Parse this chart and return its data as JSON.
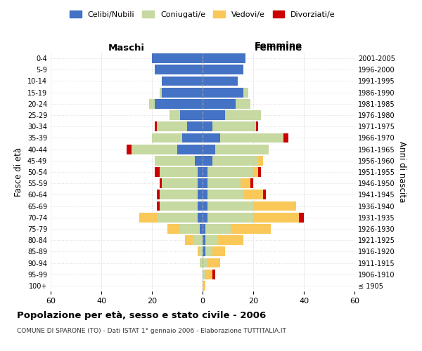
{
  "age_groups": [
    "100+",
    "95-99",
    "90-94",
    "85-89",
    "80-84",
    "75-79",
    "70-74",
    "65-69",
    "60-64",
    "55-59",
    "50-54",
    "45-49",
    "40-44",
    "35-39",
    "30-34",
    "25-29",
    "20-24",
    "15-19",
    "10-14",
    "5-9",
    "0-4"
  ],
  "birth_years": [
    "≤ 1905",
    "1906-1910",
    "1911-1915",
    "1916-1920",
    "1921-1925",
    "1926-1930",
    "1931-1935",
    "1936-1940",
    "1941-1945",
    "1946-1950",
    "1951-1955",
    "1956-1960",
    "1961-1965",
    "1966-1970",
    "1971-1975",
    "1976-1980",
    "1981-1985",
    "1986-1990",
    "1991-1995",
    "1996-2000",
    "2001-2005"
  ],
  "colors": {
    "celibi": "#4472C4",
    "coniugati": "#C6D9A0",
    "vedovi": "#FAC858",
    "divorziati": "#CC0000"
  },
  "males": {
    "celibi": [
      0,
      0,
      0,
      0,
      0,
      1,
      2,
      2,
      2,
      2,
      2,
      3,
      10,
      8,
      6,
      9,
      19,
      16,
      16,
      19,
      20
    ],
    "coniugati": [
      0,
      0,
      1,
      1,
      4,
      8,
      16,
      15,
      15,
      14,
      15,
      16,
      18,
      12,
      12,
      4,
      2,
      1,
      0,
      0,
      0
    ],
    "vedovi": [
      0,
      0,
      0,
      1,
      3,
      5,
      7,
      0,
      0,
      0,
      0,
      0,
      0,
      0,
      0,
      0,
      0,
      0,
      0,
      0,
      0
    ],
    "divorziati": [
      0,
      0,
      0,
      0,
      0,
      0,
      0,
      1,
      1,
      1,
      2,
      0,
      2,
      0,
      1,
      0,
      0,
      0,
      0,
      0,
      0
    ]
  },
  "females": {
    "celibi": [
      0,
      0,
      0,
      1,
      1,
      1,
      2,
      2,
      2,
      2,
      2,
      4,
      5,
      7,
      4,
      9,
      13,
      16,
      14,
      16,
      17
    ],
    "coniugati": [
      0,
      1,
      2,
      3,
      5,
      10,
      18,
      18,
      14,
      13,
      18,
      18,
      21,
      25,
      17,
      14,
      6,
      2,
      0,
      0,
      0
    ],
    "vedovi": [
      1,
      3,
      5,
      5,
      10,
      16,
      18,
      17,
      8,
      4,
      2,
      2,
      0,
      0,
      0,
      0,
      0,
      0,
      0,
      0,
      0
    ],
    "divorziati": [
      0,
      1,
      0,
      0,
      0,
      0,
      2,
      0,
      1,
      1,
      1,
      0,
      0,
      2,
      1,
      0,
      0,
      0,
      0,
      0,
      0
    ]
  },
  "title": "Popolazione per età, sesso e stato civile - 2006",
  "subtitle": "COMUNE DI SPARONE (TO) - Dati ISTAT 1° gennaio 2006 - Elaborazione TUTTITALIA.IT",
  "xlabel_left": "Maschi",
  "xlabel_right": "Femmine",
  "ylabel_left": "Fasce di età",
  "ylabel_right": "Anni di nascita",
  "xlim": 60,
  "legend_labels": [
    "Celibi/Nubili",
    "Coniugati/e",
    "Vedovi/e",
    "Divorziati/e"
  ],
  "background_color": "#FFFFFF",
  "grid_color": "#CCCCCC"
}
